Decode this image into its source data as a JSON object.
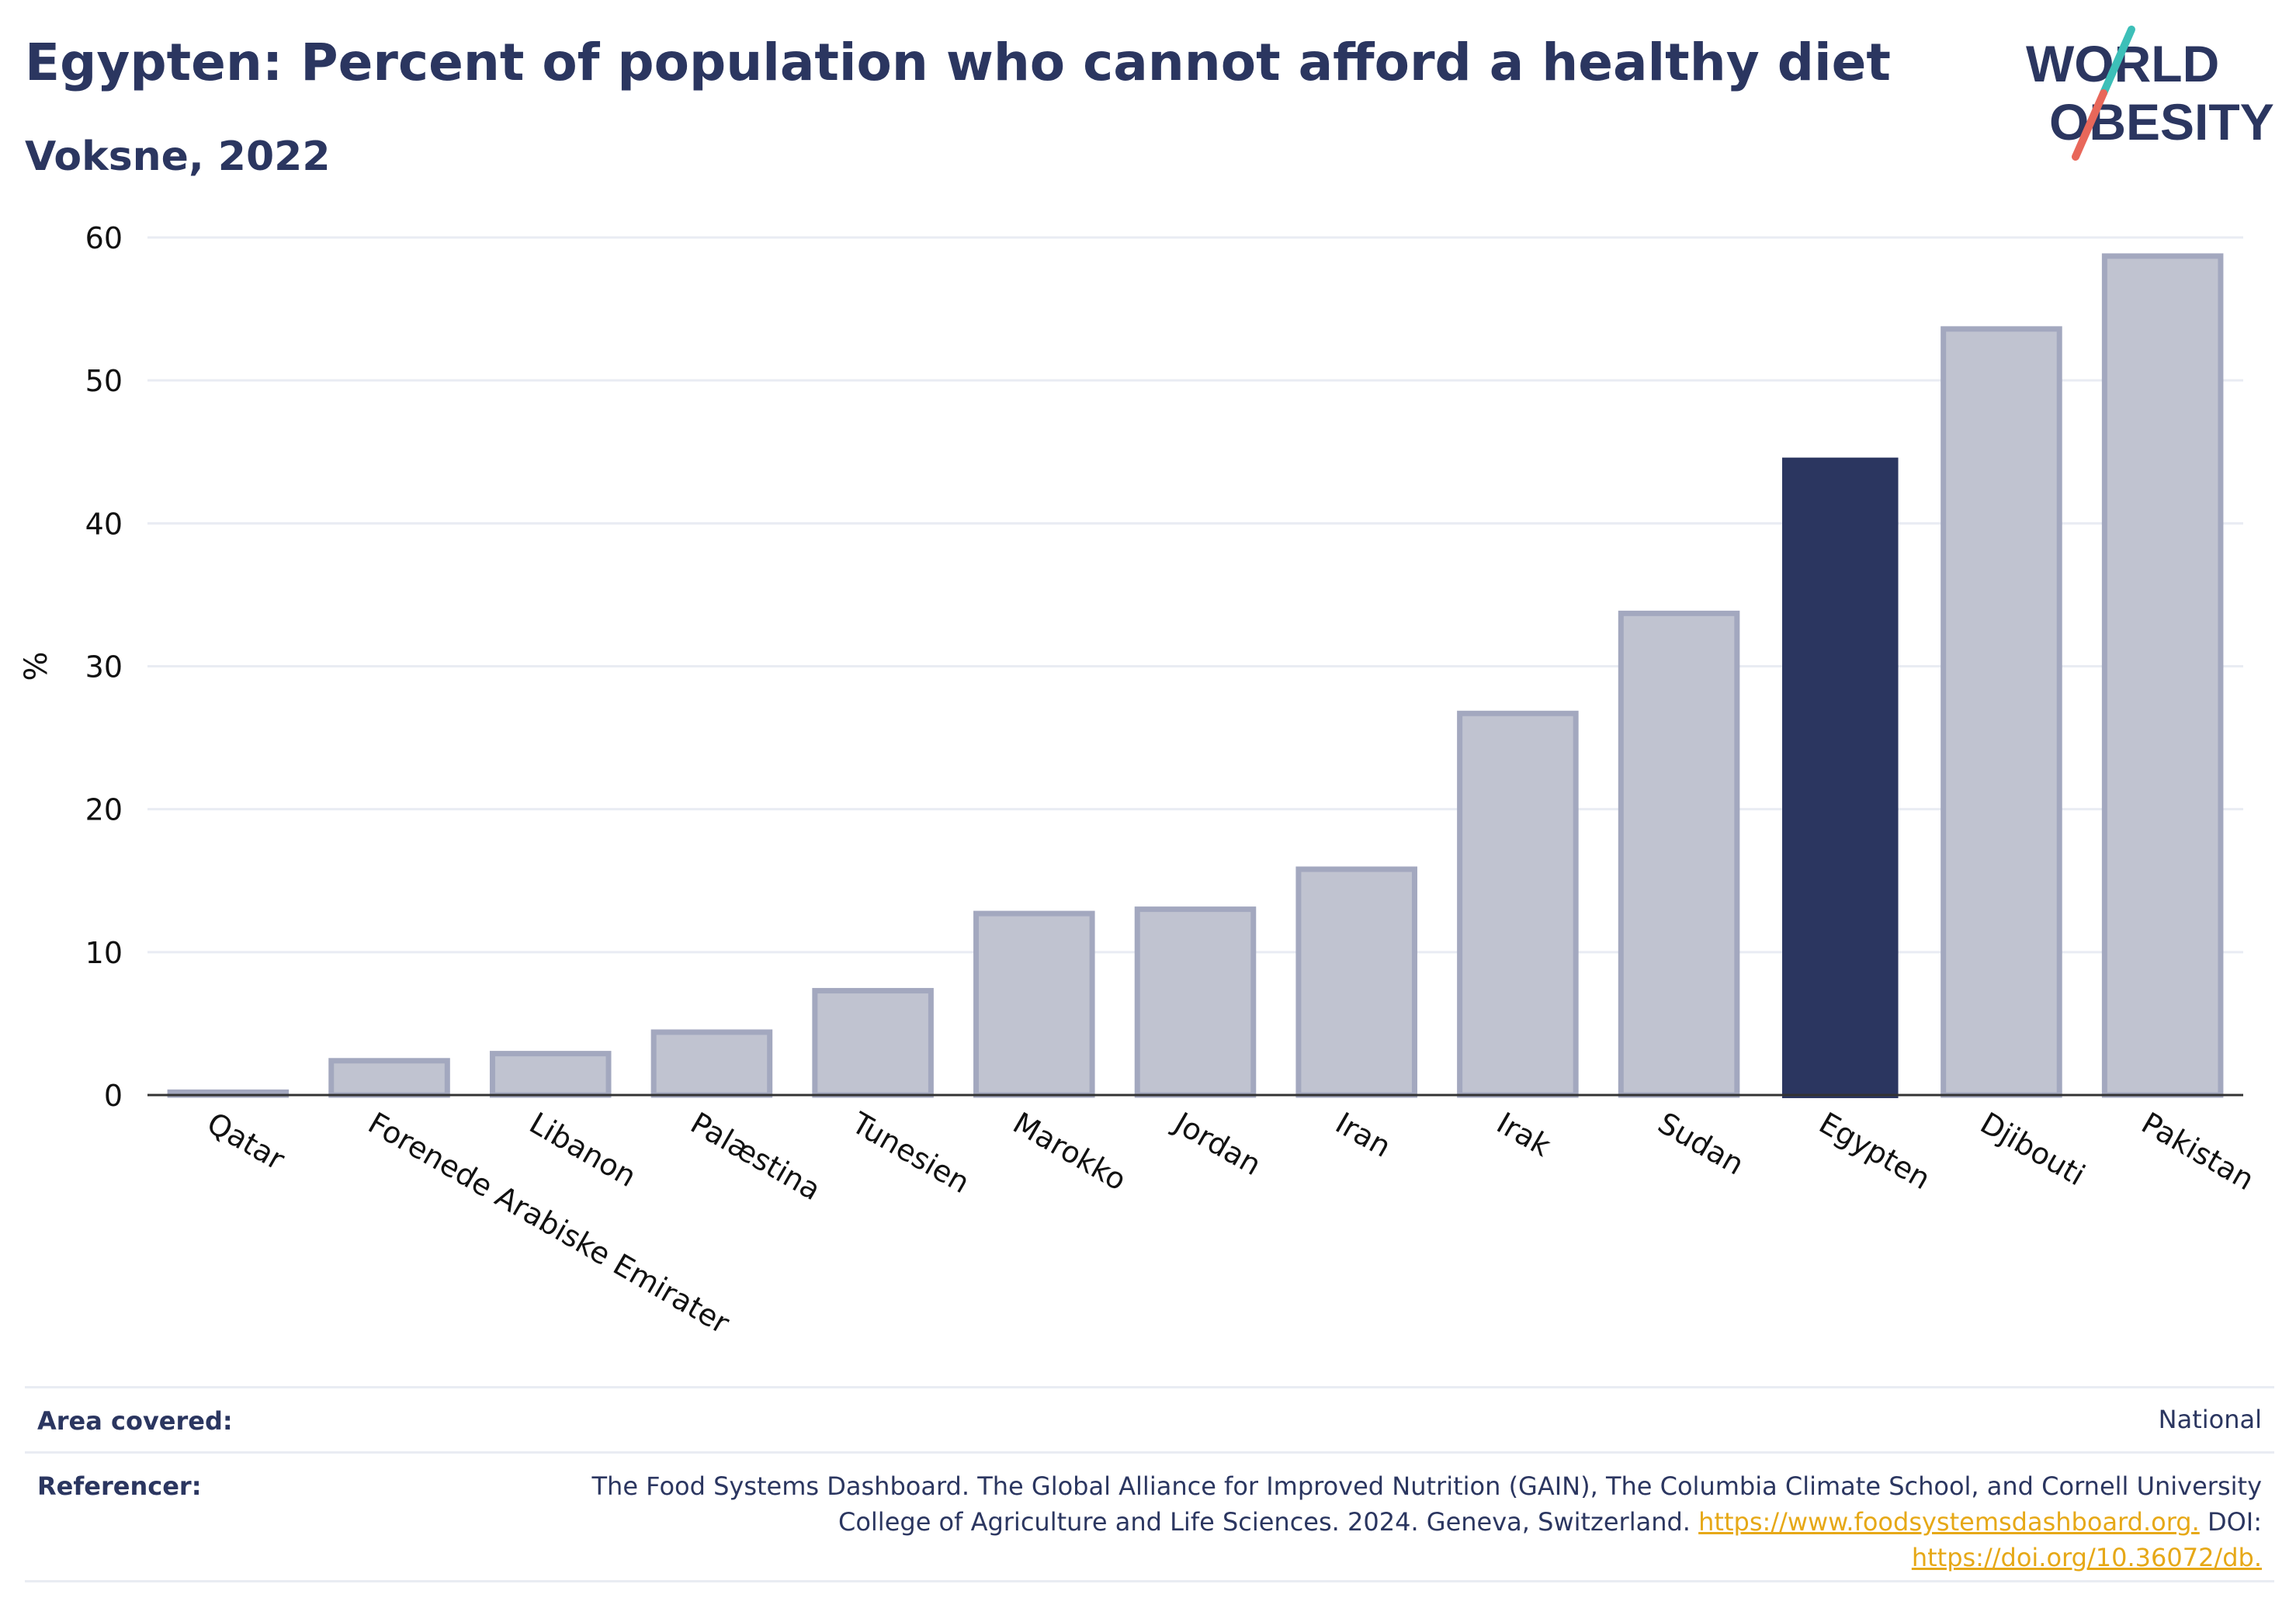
{
  "header": {
    "title": "Egypten: Percent of population who cannot afford a healthy diet",
    "subtitle": "Voksne, 2022"
  },
  "logo": {
    "line1": "WORLD",
    "line2": "OBESITY",
    "colors": {
      "text": "#2b3660",
      "slash_top": "#3dbfb8",
      "slash_bottom": "#e8675a"
    }
  },
  "chart_data": {
    "type": "bar",
    "title": "Egypten: Percent of population who cannot afford a healthy diet",
    "subtitle": "Voksne, 2022",
    "ylabel": "%",
    "xlabel": "",
    "ylim": [
      0,
      60
    ],
    "yticks": [
      0,
      10,
      20,
      30,
      40,
      50,
      60
    ],
    "grid": true,
    "categories": [
      "Qatar",
      "Forenede Arabiske Emirater",
      "Libanon",
      "Palæstina",
      "Tunesien",
      "Marokko",
      "Jordan",
      "Iran",
      "Irak",
      "Sudan",
      "Egypten",
      "Djibouti",
      "Pakistan"
    ],
    "values": [
      0.2,
      2.4,
      2.9,
      4.4,
      7.3,
      12.7,
      13.0,
      15.8,
      26.7,
      33.7,
      44.6,
      53.6,
      58.7
    ],
    "highlight": "Egypten",
    "colors": {
      "default_fill": "#c0c3d0",
      "default_stroke": "#a3a8bf",
      "highlight_fill": "#2b3660"
    }
  },
  "footer": {
    "area_label": "Area covered:",
    "area_value": "National",
    "ref_label": "Referencer:",
    "ref_line1": "The Food Systems Dashboard. The Global Alliance for Improved Nutrition (GAIN), The Columbia Climate School, and Cornell University",
    "ref_line2_text": "College of Agriculture and Life Sciences. 2024. Geneva, Switzerland.",
    "ref_link1": "https://www.foodsystemsdashboard.org.",
    "ref_doi_label": "DOI:",
    "ref_link2": "https://doi.org/10.36072/db."
  }
}
